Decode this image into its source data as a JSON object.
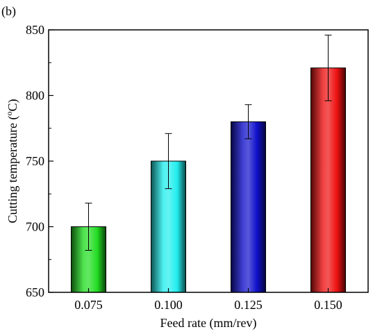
{
  "panel_label": "(b)",
  "chart_data": {
    "type": "bar",
    "categories": [
      "0.075",
      "0.100",
      "0.125",
      "0.150"
    ],
    "values": [
      700,
      750,
      780,
      821
    ],
    "errors": [
      18,
      21,
      13,
      25
    ],
    "bar_colors": [
      "#22dd22",
      "#22eeee",
      "#1010cc",
      "#ee1111"
    ],
    "xlabel": "Feed rate (mm/rev)",
    "ylabel": "Cutting temperature (",
    "ylabel_degree": "o",
    "ylabel_unit": "C)",
    "ylim": [
      650,
      850
    ],
    "yticks": [
      "650",
      "700",
      "750",
      "800",
      "850"
    ],
    "grid": false,
    "legend": "none"
  }
}
